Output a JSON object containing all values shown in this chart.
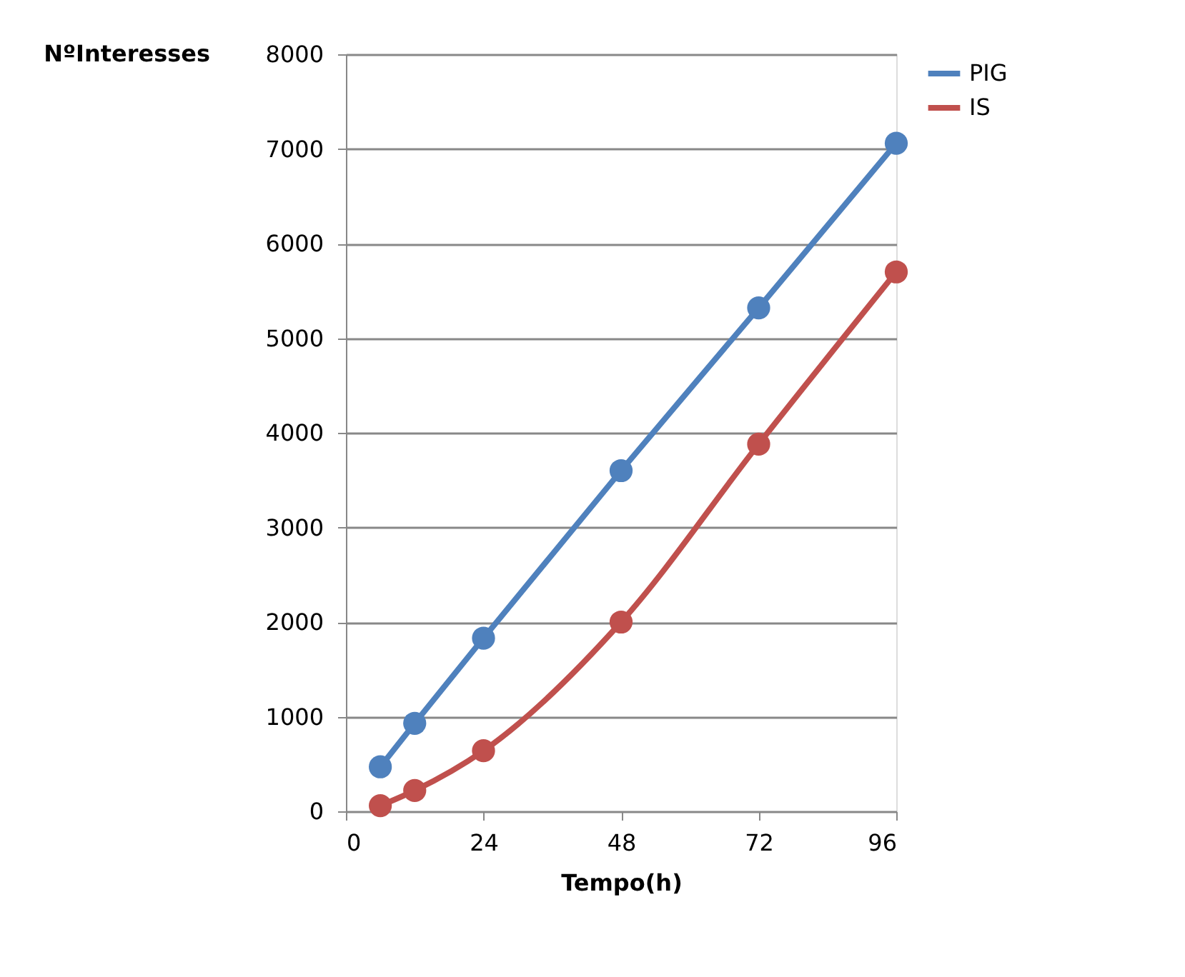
{
  "chart_data": {
    "type": "line",
    "xlabel": "Tempo(h)",
    "ylabel": "NºInteresses",
    "x": [
      6,
      12,
      24,
      48,
      72,
      96
    ],
    "series": [
      {
        "name": "PIG",
        "color": "#4f81bd",
        "values": [
          470,
          930,
          1830,
          3600,
          5320,
          7060
        ]
      },
      {
        "name": "IS",
        "color": "#c0504d",
        "values": [
          60,
          220,
          640,
          2000,
          3880,
          5700
        ]
      }
    ],
    "xlim": [
      0,
      96
    ],
    "xticks": [
      0,
      24,
      48,
      72,
      96
    ],
    "ylim": [
      0,
      8000
    ],
    "yticks": [
      0,
      1000,
      2000,
      3000,
      4000,
      5000,
      6000,
      7000,
      8000
    ],
    "grid": "y",
    "legend": "right",
    "marker": "circle",
    "line_style": "solid"
  }
}
